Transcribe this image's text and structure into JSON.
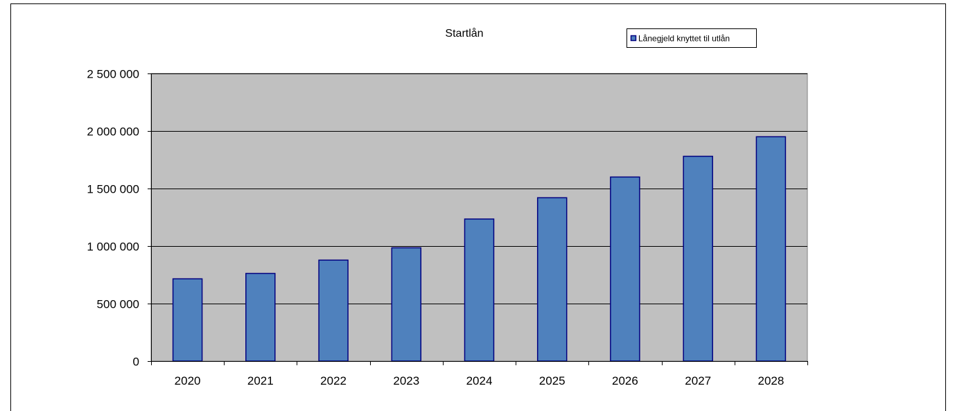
{
  "chart_data": {
    "type": "bar",
    "title": "Startlån",
    "xlabel": "",
    "ylabel": "",
    "categories": [
      "2020",
      "2021",
      "2022",
      "2023",
      "2024",
      "2025",
      "2026",
      "2027",
      "2028"
    ],
    "series": [
      {
        "name": "Lånegjeld knyttet til utlån",
        "values": [
          715000,
          762000,
          878000,
          985000,
          1235000,
          1420000,
          1600000,
          1780000,
          1950000
        ]
      }
    ],
    "ylim": [
      0,
      2500000
    ],
    "yticks": [
      0,
      500000,
      1000000,
      1500000,
      2000000,
      2500000
    ],
    "ytick_labels": [
      "0",
      "500 000",
      "1 000 000",
      "1 500 000",
      "2 000 000",
      "2 500 000"
    ],
    "grid": true,
    "legend_position": "top-right",
    "colors": {
      "bar_fill": "#4f81bd",
      "bar_stroke": "#000080",
      "plot_background": "#c0c0c0",
      "legend_swatch": "#000080"
    }
  }
}
